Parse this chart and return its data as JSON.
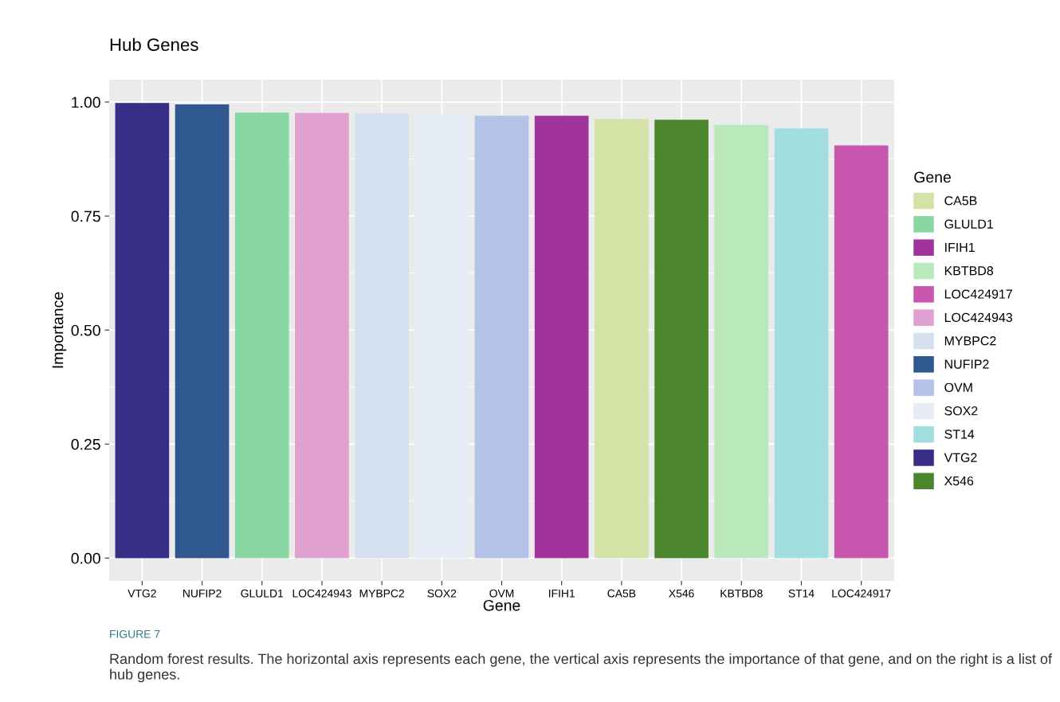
{
  "chart_data": {
    "type": "bar",
    "title": "Hub Genes",
    "xlabel": "Gene",
    "ylabel": "Importance",
    "legend_title": "Gene",
    "categories": [
      "VTG2",
      "NUFIP2",
      "GLULD1",
      "LOC424943",
      "MYBPC2",
      "SOX2",
      "OVM",
      "IFIH1",
      "CA5B",
      "X546",
      "KBTBD8",
      "ST14",
      "LOC424917"
    ],
    "series": [
      {
        "name": "CA5B",
        "color": "#d5e2a6",
        "values": [
          null,
          null,
          null,
          null,
          null,
          null,
          null,
          null,
          0.963,
          null,
          null,
          null,
          null
        ]
      },
      {
        "name": "GLULD1",
        "color": "#89d8a4",
        "values": [
          null,
          null,
          0.977,
          null,
          null,
          null,
          null,
          null,
          null,
          null,
          null,
          null,
          null
        ]
      },
      {
        "name": "IFIH1",
        "color": "#a0339e",
        "values": [
          null,
          null,
          null,
          null,
          null,
          null,
          null,
          0.97,
          null,
          null,
          null,
          null,
          null
        ]
      },
      {
        "name": "KBTBD8",
        "color": "#b9e8bb",
        "values": [
          null,
          null,
          null,
          null,
          null,
          null,
          null,
          null,
          null,
          null,
          0.95,
          null,
          null
        ]
      },
      {
        "name": "LOC424917",
        "color": "#c757ae",
        "values": [
          null,
          null,
          null,
          null,
          null,
          null,
          null,
          null,
          null,
          null,
          null,
          null,
          0.905
        ]
      },
      {
        "name": "LOC424943",
        "color": "#e0a0d0",
        "values": [
          null,
          null,
          null,
          0.976,
          null,
          null,
          null,
          null,
          null,
          null,
          null,
          null,
          null
        ]
      },
      {
        "name": "MYBPC2",
        "color": "#d4e0f0",
        "values": [
          null,
          null,
          null,
          null,
          0.975,
          null,
          null,
          null,
          null,
          null,
          null,
          null,
          null
        ]
      },
      {
        "name": "NUFIP2",
        "color": "#2f5790",
        "values": [
          null,
          0.995,
          null,
          null,
          null,
          null,
          null,
          null,
          null,
          null,
          null,
          null,
          null
        ]
      },
      {
        "name": "OVM",
        "color": "#b5c2e8",
        "values": [
          null,
          null,
          null,
          null,
          null,
          null,
          0.97,
          null,
          null,
          null,
          null,
          null,
          null
        ]
      },
      {
        "name": "SOX2",
        "color": "#e6ecf5",
        "values": [
          null,
          null,
          null,
          null,
          null,
          0.973,
          null,
          null,
          null,
          null,
          null,
          null,
          null
        ]
      },
      {
        "name": "ST14",
        "color": "#a0dee0",
        "values": [
          null,
          null,
          null,
          null,
          null,
          null,
          null,
          null,
          null,
          null,
          null,
          0.942,
          null
        ]
      },
      {
        "name": "VTG2",
        "color": "#382d87",
        "values": [
          0.998,
          null,
          null,
          null,
          null,
          null,
          null,
          null,
          null,
          null,
          null,
          null,
          null
        ]
      },
      {
        "name": "X546",
        "color": "#4c862c",
        "values": [
          null,
          null,
          null,
          null,
          null,
          null,
          null,
          null,
          null,
          0.961,
          null,
          null,
          null
        ]
      }
    ],
    "ylim": [
      -0.05,
      1.049
    ],
    "yticks": [
      {
        "value": 0,
        "label": "0.00"
      },
      {
        "value": 0.25,
        "label": "0.25"
      },
      {
        "value": 0.5,
        "label": "0.50"
      },
      {
        "value": 0.75,
        "label": "0.75"
      },
      {
        "value": 1,
        "label": "1.00"
      }
    ],
    "grid": true,
    "legend": "right",
    "annotations": [
      "FIGURE 7",
      "Random forest results. The horizontal axis represents each gene, the vertical axis represents the importance of that gene, and on the right is a list of hub genes."
    ]
  }
}
